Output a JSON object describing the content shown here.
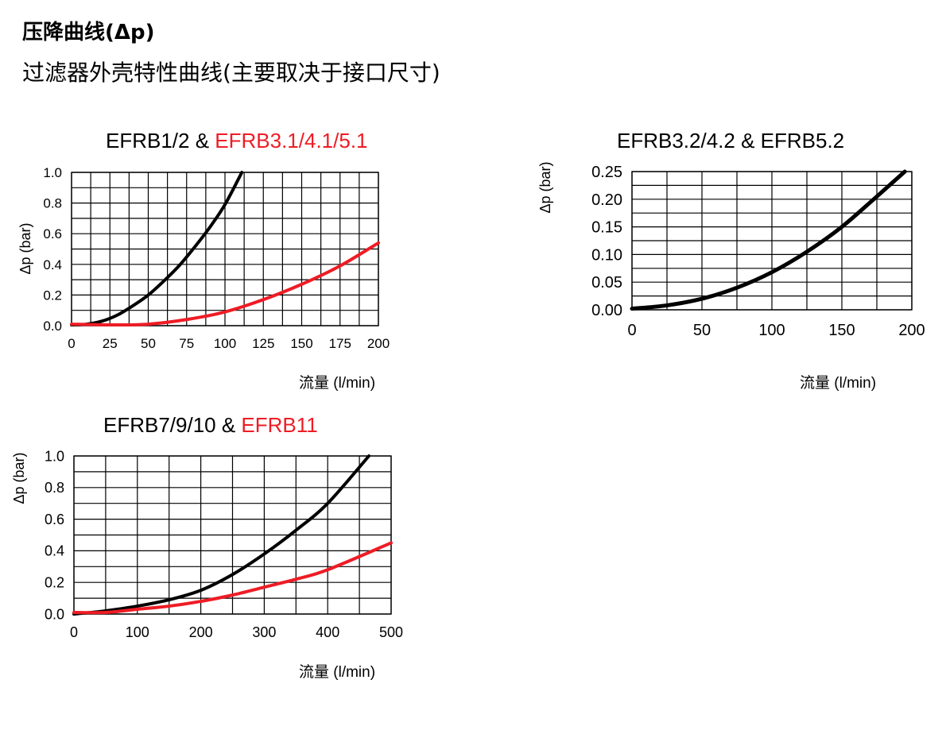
{
  "header": {
    "title": "压降曲线(Δp)",
    "subtitle": "过滤器外壳特性曲线(主要取决于接口尺寸)"
  },
  "chart_data": [
    {
      "id": "c1",
      "type": "line",
      "title_parts": [
        {
          "text": "EFRB1/2 & ",
          "color": "#000000"
        },
        {
          "text": "EFRB3.1/4.1/5.1",
          "color": "#ee1c25"
        }
      ],
      "xlabel": "流量 (l/min)",
      "ylabel": "Δp (bar)",
      "xlim": [
        0,
        200
      ],
      "ylim": [
        0,
        1.0
      ],
      "xticks": [
        0,
        25,
        50,
        75,
        100,
        125,
        150,
        175,
        200
      ],
      "xtick_labels": [
        "0",
        "25",
        "50",
        "75",
        "100",
        "125",
        "150",
        "175",
        "200"
      ],
      "yticks": [
        0,
        0.2,
        0.4,
        0.6,
        0.8,
        1.0
      ],
      "ytick_labels": [
        "0.0",
        "0.2",
        "0.4",
        "0.6",
        "0.8",
        "1.0"
      ],
      "grid_x_step": 12.5,
      "grid_y_step": 0.1,
      "grid": true,
      "series": [
        {
          "color": "#000000",
          "x": [
            0,
            10,
            20,
            30,
            40,
            50,
            60,
            70,
            80,
            90,
            100,
            111
          ],
          "y": [
            0.005,
            0.01,
            0.03,
            0.07,
            0.13,
            0.2,
            0.29,
            0.39,
            0.51,
            0.64,
            0.79,
            1.0
          ]
        },
        {
          "color": "#ee1c25",
          "x": [
            0,
            25,
            50,
            75,
            100,
            125,
            150,
            175,
            200
          ],
          "y": [
            0.01,
            0.005,
            0.01,
            0.04,
            0.09,
            0.17,
            0.27,
            0.39,
            0.54
          ]
        }
      ]
    },
    {
      "id": "c2",
      "type": "line",
      "title_parts": [
        {
          "text": "EFRB3.2/4.2 & EFRB5.2",
          "color": "#000000"
        }
      ],
      "xlabel": "流量 (l/min)",
      "ylabel": "Δp (bar)",
      "xlim": [
        0,
        200
      ],
      "ylim": [
        0,
        0.25
      ],
      "xticks": [
        0,
        50,
        100,
        150,
        200
      ],
      "xtick_labels": [
        "0",
        "50",
        "100",
        "150",
        "200"
      ],
      "yticks": [
        0,
        0.05,
        0.1,
        0.15,
        0.2,
        0.25
      ],
      "ytick_labels": [
        "0.00",
        "0.05",
        "0.10",
        "0.15",
        "0.20",
        "0.25"
      ],
      "grid_x_step": 25,
      "grid_y_step": 0.025,
      "grid": true,
      "series": [
        {
          "color": "#000000",
          "x": [
            0,
            25,
            50,
            75,
            100,
            125,
            150,
            175,
            195
          ],
          "y": [
            0.002,
            0.008,
            0.02,
            0.04,
            0.068,
            0.105,
            0.15,
            0.205,
            0.25
          ]
        }
      ]
    },
    {
      "id": "c3",
      "type": "line",
      "title_parts": [
        {
          "text": "EFRB7/9/10 & ",
          "color": "#000000"
        },
        {
          "text": "EFRB11",
          "color": "#ee1c25"
        }
      ],
      "xlabel": "流量 (l/min)",
      "ylabel": "Δp (bar)",
      "xlim": [
        0,
        500
      ],
      "ylim": [
        0,
        1.0
      ],
      "xticks": [
        0,
        100,
        200,
        300,
        400,
        500
      ],
      "xtick_labels": [
        "0",
        "100",
        "200",
        "300",
        "400",
        "500"
      ],
      "yticks": [
        0,
        0.2,
        0.4,
        0.6,
        0.8,
        1.0
      ],
      "ytick_labels": [
        "0.0",
        "0.2",
        "0.4",
        "0.6",
        "0.8",
        "1.0"
      ],
      "grid_x_step": 50,
      "grid_y_step": 0.1,
      "grid": true,
      "series": [
        {
          "color": "#000000",
          "x": [
            0,
            50,
            100,
            150,
            200,
            250,
            300,
            350,
            400,
            465
          ],
          "y": [
            0.0,
            0.02,
            0.05,
            0.09,
            0.15,
            0.25,
            0.38,
            0.53,
            0.7,
            1.0
          ]
        },
        {
          "color": "#ee1c25",
          "x": [
            0,
            50,
            100,
            150,
            200,
            250,
            300,
            350,
            400,
            500
          ],
          "y": [
            0.01,
            0.01,
            0.03,
            0.05,
            0.08,
            0.12,
            0.17,
            0.22,
            0.28,
            0.45
          ]
        }
      ]
    }
  ]
}
